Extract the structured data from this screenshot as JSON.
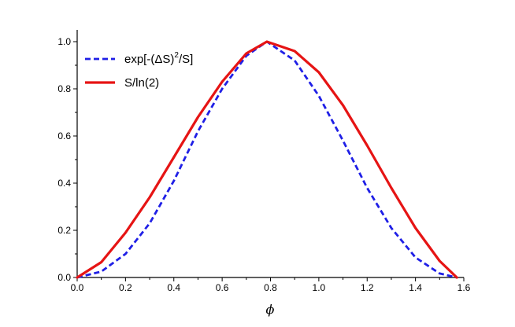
{
  "chart_data": {
    "type": "line",
    "title": "",
    "xlabel": "ϕ",
    "ylabel": "",
    "xlim": [
      0.0,
      1.6
    ],
    "ylim": [
      0.0,
      1.05
    ],
    "x_ticks": [
      "0.0",
      "0.2",
      "0.4",
      "0.6",
      "0.8",
      "1.0",
      "1.2",
      "1.4",
      "1.6"
    ],
    "y_ticks": [
      "0.0",
      "0.2",
      "0.4",
      "0.6",
      "0.8",
      "1.0"
    ],
    "grid": false,
    "legend_position": "top-left",
    "x": [
      0.0,
      0.1,
      0.2,
      0.3,
      0.4,
      0.5,
      0.6,
      0.7,
      0.785,
      0.9,
      1.0,
      1.1,
      1.2,
      1.3,
      1.4,
      1.5,
      1.571
    ],
    "series": [
      {
        "name": "exp[-(ΔS)²/S]",
        "legend_parts": {
          "main": "exp[-(ΔS)",
          "sup": "2",
          "tail": "/S]"
        },
        "color": "#1f1fe6",
        "style": "dashed",
        "values": [
          0.0,
          0.025,
          0.1,
          0.23,
          0.41,
          0.62,
          0.8,
          0.94,
          1.0,
          0.92,
          0.77,
          0.58,
          0.38,
          0.21,
          0.085,
          0.017,
          0.0
        ]
      },
      {
        "name": "S/ln(2)",
        "legend_parts": {
          "main": "S/ln(2)",
          "sup": "",
          "tail": ""
        },
        "color": "#e61414",
        "style": "solid",
        "values": [
          0.0,
          0.065,
          0.19,
          0.34,
          0.51,
          0.68,
          0.83,
          0.95,
          1.0,
          0.96,
          0.87,
          0.73,
          0.56,
          0.38,
          0.21,
          0.07,
          0.0
        ]
      }
    ]
  }
}
